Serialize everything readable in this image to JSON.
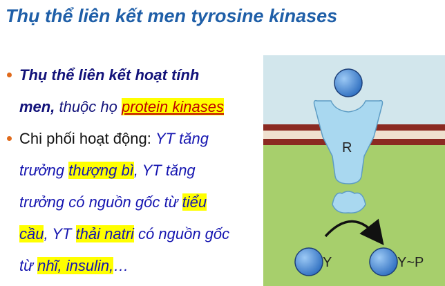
{
  "title": "Thụ thể liên kết men tyrosine kinases",
  "bullets": {
    "b1_bold": "Thụ thể liên kết hoạt tính",
    "b1_bold2": "men,",
    "b1_text": " thuộc họ ",
    "b1_link": "protein kinases",
    "b2_intro": "Chi phối hoạt động: ",
    "b2_l1_it": "YT tăng",
    "b2_l2_a": "trưởng ",
    "b2_l2_hl": "thượng bì",
    "b2_l2_b": ", YT tăng",
    "b2_l3_a": "trưởng có nguồn gốc từ ",
    "b2_l3_hl": "tiểu",
    "b2_l4_hl1": "cầu",
    "b2_l4_a": ", YT ",
    "b2_l4_hl2": "thải natri",
    "b2_l4_b": " có nguồn gốc",
    "b2_l5_a": "từ ",
    "b2_l5_hl": "nhĩ, insulin,",
    "b2_l5_b": "…"
  },
  "diagram": {
    "receptor_label": "R",
    "left_label": "Y",
    "right_label": "Y~P",
    "colors": {
      "background": "#d2e6ec",
      "membrane": "#8b2a22",
      "membrane_inner": "#efe0cf",
      "cytoplasm": "#a7cf6c",
      "receptor": "#a9d8f0",
      "ball": "#4a8fd8"
    }
  }
}
